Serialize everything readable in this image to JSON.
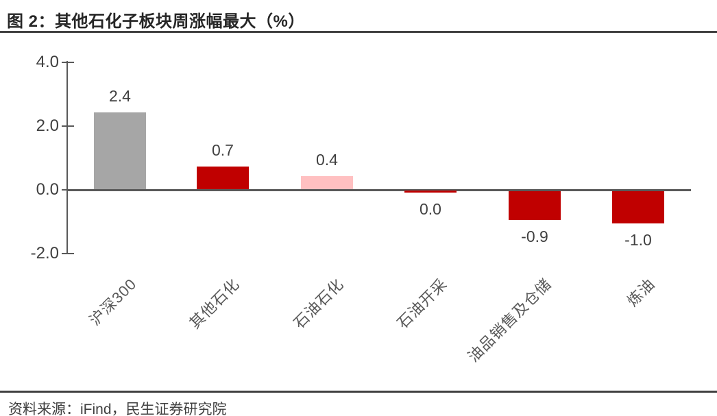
{
  "header": {
    "title": "图 2：其他石化子板块周涨幅最大（%）"
  },
  "footer": {
    "source": "资料来源：iFind，民生证券研究院"
  },
  "chart_data": {
    "type": "bar",
    "title": "其他石化子板块周涨幅最大（%）",
    "categories": [
      "沪深300",
      "其他石化",
      "石油石化",
      "石油开采",
      "油品销售及仓储",
      "炼油"
    ],
    "values": [
      2.4,
      0.7,
      0.4,
      0.0,
      -0.9,
      -1.0
    ],
    "value_labels": [
      "2.4",
      "0.7",
      "0.4",
      "0.0",
      "-0.9",
      "-1.0"
    ],
    "bar_colors": [
      "#a6a6a6",
      "#c00000",
      "#ffc0c1",
      "#c00000",
      "#c00000",
      "#c00000"
    ],
    "y_ticks": [
      "4.0",
      "2.0",
      "0.0",
      "-2.0"
    ],
    "ylim": [
      -2.0,
      4.0
    ],
    "xlabel": "",
    "ylabel": "",
    "grid": false,
    "legend": "none",
    "colors": {
      "gray_bar": "#a6a6a6",
      "red_bar": "#c00000",
      "pink_bar": "#ffc0c1",
      "axis": "#595959",
      "text": "#404040",
      "rule": "#404040"
    }
  }
}
